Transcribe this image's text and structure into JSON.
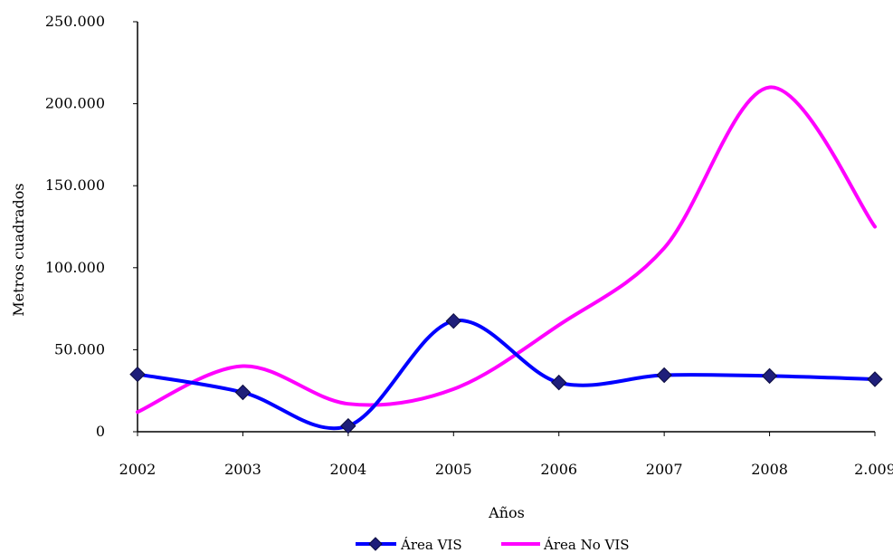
{
  "chart_data": {
    "type": "line",
    "title": "",
    "xlabel": "Años",
    "ylabel": "Metros cuadrados",
    "categories": [
      "2002",
      "2003",
      "2004",
      "2005",
      "2006",
      "2007",
      "2008",
      "2.009"
    ],
    "ylim": [
      0,
      250000
    ],
    "y_ticks": [
      0,
      50000,
      100000,
      150000,
      200000,
      250000
    ],
    "y_tick_labels": [
      "0",
      "50.000",
      "100.000",
      "150.000",
      "200.000",
      "250.000"
    ],
    "grid": false,
    "legend_position": "bottom",
    "series": [
      {
        "name": "Área  VIS",
        "color": "#0000ff",
        "marker": "diamond",
        "marker_color": "#1f1f7a",
        "smooth": true,
        "values": [
          35000,
          24000,
          3500,
          67500,
          30000,
          34500,
          34000,
          32000
        ]
      },
      {
        "name": "Área No VIS",
        "color": "#ff00ff",
        "marker": "none",
        "smooth": true,
        "values": [
          12000,
          40000,
          17000,
          26000,
          65000,
          112000,
          210000,
          125000
        ]
      }
    ]
  }
}
